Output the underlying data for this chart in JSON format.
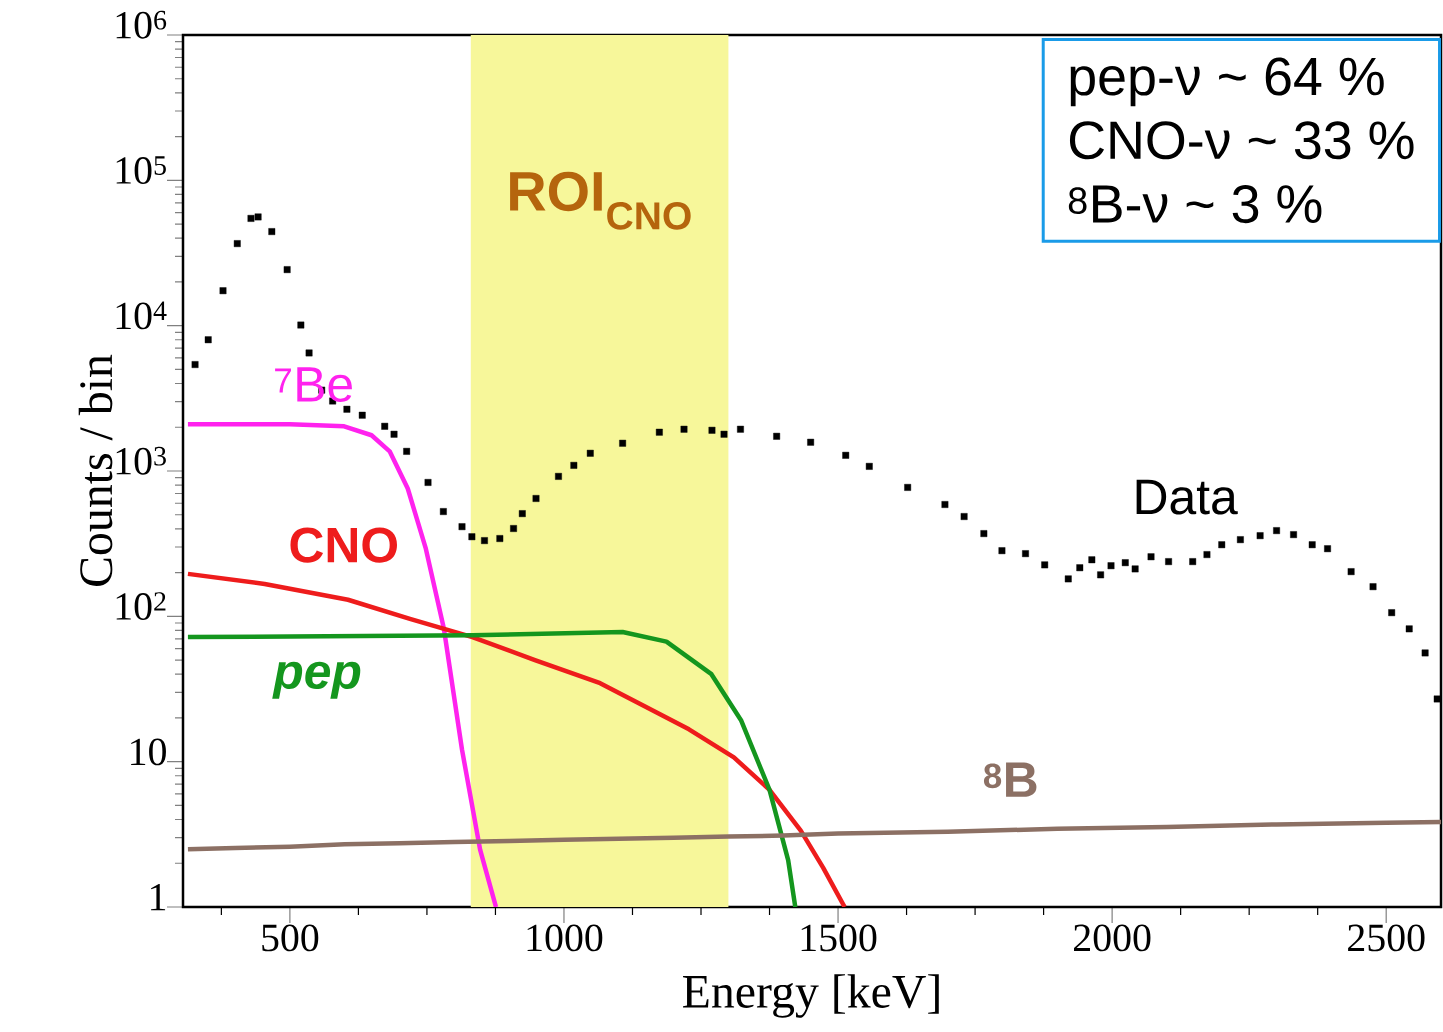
{
  "chart_data": {
    "type": "line",
    "xlabel": "Energy [keV]",
    "ylabel": "Counts / bin",
    "log": "y",
    "xlim": [
      305,
      2600
    ],
    "ylim": [
      1,
      1000000
    ],
    "xticks": [
      {
        "value": 375,
        "label": null
      },
      500,
      {
        "value": 625,
        "label": null
      },
      {
        "value": 750,
        "label": null
      },
      {
        "value": 875,
        "label": null
      },
      1000,
      {
        "value": 1125,
        "label": null
      },
      {
        "value": 1250,
        "label": null
      },
      {
        "value": 1375,
        "label": null
      },
      1500,
      {
        "value": 1625,
        "label": null
      },
      {
        "value": 1750,
        "label": null
      },
      {
        "value": 1875,
        "label": null
      },
      2000,
      {
        "value": 2125,
        "label": null
      },
      {
        "value": 2250,
        "label": null
      },
      {
        "value": 2375,
        "label": null
      },
      2500
    ],
    "yticks": [
      1,
      10,
      {
        "value": 100,
        "label": "10$^{2}$"
      },
      {
        "value": 1000,
        "label": "10$^{3}$"
      },
      {
        "value": 10000,
        "label": "10$^{4}$"
      },
      {
        "value": 100000,
        "label": "10$^{5}$"
      },
      {
        "value": 1000000,
        "label": "10$^{6}$"
      }
    ],
    "bands": [
      {
        "axis": "x",
        "from": 830,
        "to": 1300,
        "label": "ROI$_{CNO}$",
        "color": "#f7f79a"
      }
    ],
    "annotations": [
      "pep-ν ~ 64 %",
      "CNO-ν ~ 33 %",
      "$^{8}$B-ν ~ 3 %"
    ],
    "series": [
      {
        "name": "Data",
        "type": "scatter",
        "color": "#000000",
        "x": [
          327,
          351,
          378,
          404,
          429,
          442,
          467,
          495,
          520,
          535,
          558,
          578,
          604,
          632,
          673,
          690,
          713,
          752,
          780,
          814,
          832,
          855,
          883,
          908,
          924,
          949,
          990,
          1018,
          1048,
          1107,
          1174,
          1219,
          1270,
          1292,
          1322,
          1388,
          1450,
          1514,
          1557,
          1627,
          1695,
          1730,
          1766,
          1799,
          1842,
          1877,
          1920,
          1941,
          1963,
          1979,
          1998,
          2024,
          2042,
          2071,
          2103,
          2147,
          2173,
          2200,
          2234,
          2270,
          2300,
          2331,
          2365,
          2393,
          2436,
          2476,
          2510,
          2542,
          2571,
          2593
        ],
        "values": [
          5400,
          8000,
          17400,
          36700,
          54700,
          56000,
          44400,
          24300,
          10100,
          6490,
          3600,
          3030,
          2660,
          2420,
          2030,
          1790,
          1365,
          834,
          526,
          414,
          353,
          332,
          343,
          402,
          509,
          647,
          918,
          1093,
          1324,
          1552,
          1849,
          1938,
          1906,
          1790,
          1938,
          1733,
          1577,
          1282,
          1076,
          771,
          588,
          486,
          371,
          283,
          270,
          226,
          181,
          216,
          245,
          193,
          223,
          234,
          212,
          257,
          238,
          238,
          266,
          311,
          337,
          359,
          389,
          365,
          311,
          292,
          203,
          160,
          106,
          82,
          56,
          27
        ]
      },
      {
        "name": "$^{7}$Be",
        "type": "line",
        "color": "#ff22ee",
        "x": [
          314,
          500,
          599,
          649,
          682,
          715,
          748,
          781,
          814,
          847,
          876
        ],
        "values": [
          2100,
          2100,
          2030,
          1762,
          1365,
          758,
          292,
          82,
          12.1,
          2.48,
          1
        ]
      },
      {
        "name": "CNO",
        "type": "line",
        "color": "#ee1c1c",
        "x": [
          314,
          454,
          606,
          719,
          833,
          947,
          1066,
          1148,
          1228,
          1310,
          1375,
          1432,
          1473,
          1512
        ],
        "values": [
          196,
          167,
          130,
          96,
          72,
          50,
          34.7,
          24,
          16.7,
          10.7,
          6.4,
          3.35,
          1.86,
          1
        ]
      },
      {
        "name": "pep",
        "type": "line",
        "color": "#14961e",
        "x": [
          314,
          833,
          1107,
          1187,
          1269,
          1323,
          1375,
          1409,
          1422
        ],
        "values": [
          72,
          74,
          78,
          67,
          40,
          19.3,
          6.4,
          2.1,
          1
        ]
      },
      {
        "name": "$^{8}$B",
        "type": "line",
        "color": "#8c7064",
        "x": [
          314,
          400,
          500,
          600,
          700,
          800,
          900,
          1000,
          1100,
          1200,
          1300,
          1400,
          1500,
          1700,
          1900,
          2100,
          2300,
          2500,
          2600
        ],
        "values": [
          2.5,
          2.55,
          2.6,
          2.7,
          2.75,
          2.8,
          2.85,
          2.9,
          2.95,
          3.0,
          3.05,
          3.1,
          3.2,
          3.3,
          3.45,
          3.55,
          3.7,
          3.8,
          3.85
        ]
      }
    ]
  }
}
